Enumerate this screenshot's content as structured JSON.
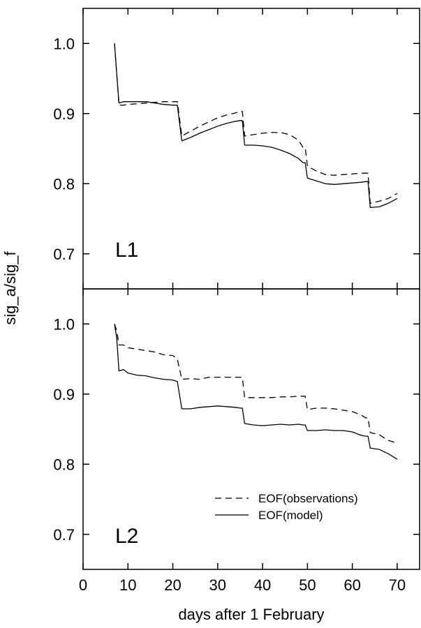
{
  "chart_data": {
    "type": "line",
    "xlabel": "days after 1 February",
    "ylabel": "sig_a/sig_f",
    "xlim": [
      0,
      75
    ],
    "xticks": [
      0,
      10,
      20,
      30,
      40,
      50,
      60,
      70
    ],
    "grid": false,
    "legend": {
      "placement": "bottom-right of lower panel",
      "entries": [
        {
          "label": "EOF(observations)",
          "style": "dashed"
        },
        {
          "label": "EOF(model)",
          "style": "solid"
        }
      ]
    },
    "panels": [
      {
        "label": "L1",
        "ylim": [
          0.65,
          1.05
        ],
        "yticks": [
          0.7,
          0.8,
          0.9,
          1.0
        ],
        "ytick_labels": [
          "0.7",
          "0.8",
          "0.9",
          "1.0"
        ],
        "series": [
          {
            "name": "EOF(observations)",
            "style": "dashed",
            "x": [
              7,
              8,
              9,
              10,
              12,
              14,
              16,
              18,
              20,
              21,
              22,
              24,
              26,
              28,
              30,
              32,
              34,
              35,
              35.5,
              36,
              38,
              40,
              42,
              44,
              46,
              48,
              49,
              49.5,
              50,
              52,
              54,
              56,
              58,
              60,
              62,
              63,
              63.5,
              64,
              66,
              68,
              70
            ],
            "y": [
              1.0,
              0.912,
              0.912,
              0.913,
              0.914,
              0.915,
              0.916,
              0.917,
              0.917,
              0.917,
              0.868,
              0.875,
              0.882,
              0.888,
              0.894,
              0.898,
              0.901,
              0.903,
              0.903,
              0.868,
              0.87,
              0.872,
              0.873,
              0.873,
              0.87,
              0.862,
              0.852,
              0.852,
              0.825,
              0.818,
              0.813,
              0.812,
              0.813,
              0.814,
              0.815,
              0.815,
              0.815,
              0.772,
              0.775,
              0.779,
              0.786
            ]
          },
          {
            "name": "EOF(model)",
            "style": "solid",
            "x": [
              7,
              8,
              9,
              10,
              12,
              14,
              16,
              18,
              20,
              21,
              22,
              24,
              26,
              28,
              30,
              32,
              34,
              35,
              35.5,
              36,
              38,
              40,
              42,
              44,
              46,
              48,
              49,
              49.5,
              50,
              52,
              54,
              56,
              58,
              60,
              62,
              63,
              63.5,
              64,
              66,
              68,
              70
            ],
            "y": [
              1.0,
              0.915,
              0.917,
              0.917,
              0.917,
              0.917,
              0.915,
              0.913,
              0.912,
              0.912,
              0.861,
              0.866,
              0.872,
              0.877,
              0.882,
              0.886,
              0.889,
              0.89,
              0.89,
              0.855,
              0.855,
              0.854,
              0.852,
              0.848,
              0.843,
              0.836,
              0.83,
              0.83,
              0.808,
              0.804,
              0.8,
              0.799,
              0.8,
              0.801,
              0.802,
              0.803,
              0.803,
              0.766,
              0.767,
              0.772,
              0.779
            ]
          }
        ]
      },
      {
        "label": "L2",
        "ylim": [
          0.65,
          1.05
        ],
        "yticks": [
          0.7,
          0.8,
          0.9,
          1.0
        ],
        "ytick_labels": [
          "0.7",
          "0.8",
          "0.9",
          "1.0"
        ],
        "series": [
          {
            "name": "EOF(observations)",
            "style": "dashed",
            "x": [
              7,
              7.5,
              8,
              9,
              10,
              12,
              14,
              16,
              18,
              20,
              21,
              22,
              24,
              26,
              28,
              30,
              32,
              34,
              35,
              35.5,
              36,
              38,
              40,
              42,
              44,
              46,
              48,
              49,
              49.5,
              50,
              52,
              54,
              56,
              58,
              60,
              62,
              63,
              63.5,
              64,
              66,
              68,
              70
            ],
            "y": [
              1.0,
              0.99,
              0.97,
              0.97,
              0.966,
              0.964,
              0.962,
              0.96,
              0.956,
              0.955,
              0.95,
              0.921,
              0.922,
              0.921,
              0.924,
              0.924,
              0.924,
              0.924,
              0.924,
              0.924,
              0.895,
              0.895,
              0.895,
              0.895,
              0.896,
              0.896,
              0.897,
              0.897,
              0.897,
              0.878,
              0.88,
              0.88,
              0.879,
              0.877,
              0.875,
              0.87,
              0.866,
              0.866,
              0.845,
              0.842,
              0.834,
              0.83
            ]
          },
          {
            "name": "EOF(model)",
            "style": "solid",
            "x": [
              7,
              7.5,
              8,
              9,
              10,
              12,
              14,
              16,
              18,
              20,
              21,
              22,
              24,
              26,
              28,
              30,
              32,
              34,
              35,
              35.5,
              36,
              38,
              40,
              42,
              44,
              46,
              48,
              49,
              49.5,
              50,
              52,
              54,
              56,
              58,
              60,
              62,
              63,
              63.5,
              64,
              66,
              68,
              70
            ],
            "y": [
              1.0,
              0.98,
              0.933,
              0.935,
              0.93,
              0.927,
              0.926,
              0.923,
              0.921,
              0.92,
              0.918,
              0.879,
              0.879,
              0.881,
              0.882,
              0.883,
              0.882,
              0.881,
              0.88,
              0.88,
              0.858,
              0.856,
              0.855,
              0.856,
              0.857,
              0.856,
              0.857,
              0.856,
              0.856,
              0.848,
              0.848,
              0.849,
              0.848,
              0.848,
              0.846,
              0.841,
              0.84,
              0.84,
              0.823,
              0.821,
              0.815,
              0.807
            ]
          }
        ]
      }
    ]
  }
}
